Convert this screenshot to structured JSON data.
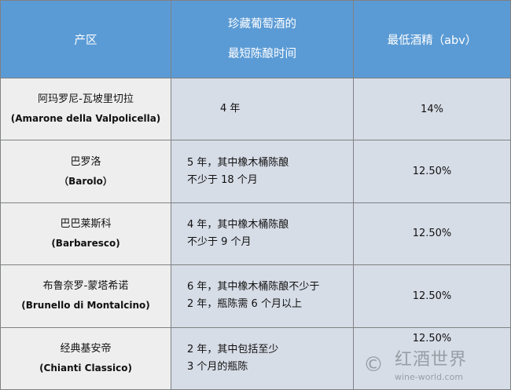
{
  "headers": {
    "region": "产区",
    "aging": [
      "珍藏葡萄酒的",
      "最短陈酿时间"
    ],
    "abv": "最低酒精（abv）"
  },
  "rows": [
    {
      "zh": "阿玛罗尼-瓦坡里切拉",
      "en": "(Amarone della Valpolicella)",
      "aging": [
        "4 年"
      ],
      "abv": "14%"
    },
    {
      "zh": "巴罗洛",
      "en": "（Barolo）",
      "aging": [
        "5 年，其中橡木桶陈酿",
        "不少于 18 个月"
      ],
      "abv": "12.50%"
    },
    {
      "zh": "巴巴莱斯科",
      "en": "(Barbaresco)",
      "aging": [
        "4 年，其中橡木桶陈酿",
        "不少于 9 个月"
      ],
      "abv": "12.50%"
    },
    {
      "zh": "布鲁奈罗-蒙塔希诺",
      "en": "(Brunello di Montalcino)",
      "aging": [
        "6 年，其中橡木桶陈酿不少于",
        "2 年，瓶陈需 6 个月以上"
      ],
      "abv": "12.50%"
    },
    {
      "zh": "经典基安帝",
      "en": "(Chianti Classico)",
      "aging": [
        "2 年，其中包括至少",
        "3 个月的瓶陈"
      ],
      "abv": "12.50%"
    }
  ],
  "watermark": {
    "symbol": "©",
    "logo": "红酒世界",
    "url": "wine-world.com"
  },
  "colors": {
    "header": "#5b9bd5",
    "region_bg": "#eeeeee",
    "cell_bg": "#d7dde7"
  }
}
